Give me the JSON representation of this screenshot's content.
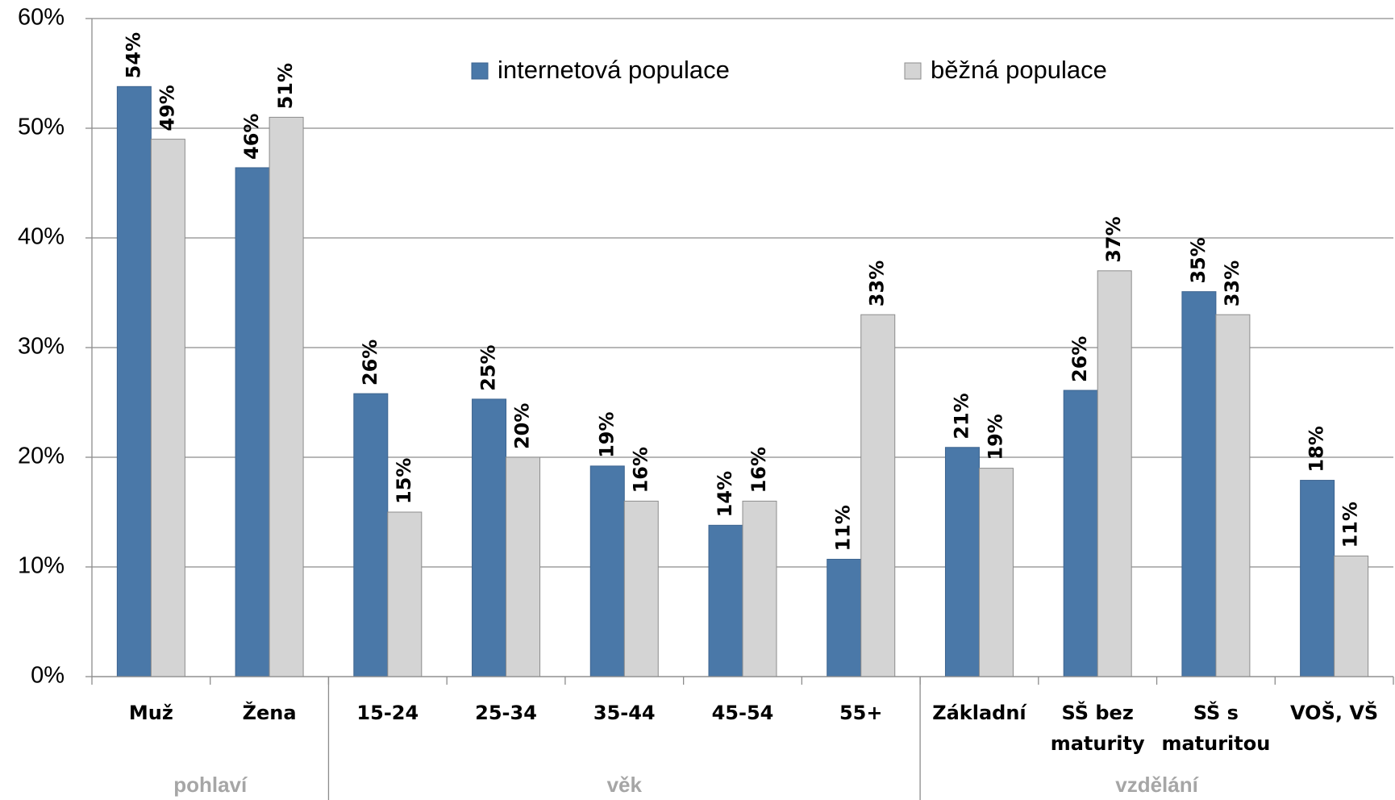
{
  "chart_data": {
    "type": "bar",
    "categories": [
      "Muž",
      "Žena",
      "15-24",
      "25-34",
      "35-44",
      "45-54",
      "55+",
      "Základní",
      "SŠ bez maturity",
      "SŠ s maturitou",
      "VOŠ, VŠ"
    ],
    "groups": [
      {
        "label": "pohlaví",
        "size": 2
      },
      {
        "label": "věk",
        "size": 5
      },
      {
        "label": "vzdělání",
        "size": 4
      }
    ],
    "series": [
      {
        "name": "internetová populace",
        "color": "#4a78a8",
        "values": [
          53.8,
          46.4,
          25.8,
          25.3,
          19.2,
          13.8,
          10.7,
          20.9,
          26.1,
          35.1,
          17.9
        ],
        "value_labels": [
          "54%",
          "46%",
          "26%",
          "25%",
          "19%",
          "14%",
          "11%",
          "21%",
          "26%",
          "35%",
          "18%"
        ]
      },
      {
        "name": "běžná populace",
        "color": "#d4d4d4",
        "values": [
          49,
          51,
          15,
          20,
          16,
          16,
          33,
          19,
          37,
          33,
          11
        ],
        "value_labels": [
          "49%",
          "51%",
          "15%",
          "20%",
          "16%",
          "16%",
          "33%",
          "19%",
          "37%",
          "33%",
          "11%"
        ]
      }
    ],
    "ylim": [
      0,
      60
    ],
    "yticks": [
      {
        "value": 0,
        "label": "0%"
      },
      {
        "value": 10,
        "label": "10%"
      },
      {
        "value": 20,
        "label": "20%"
      },
      {
        "value": 30,
        "label": "30%"
      },
      {
        "value": 40,
        "label": "40%"
      },
      {
        "value": 50,
        "label": "50%"
      },
      {
        "value": 60,
        "label": "60%"
      }
    ],
    "grid": true
  }
}
